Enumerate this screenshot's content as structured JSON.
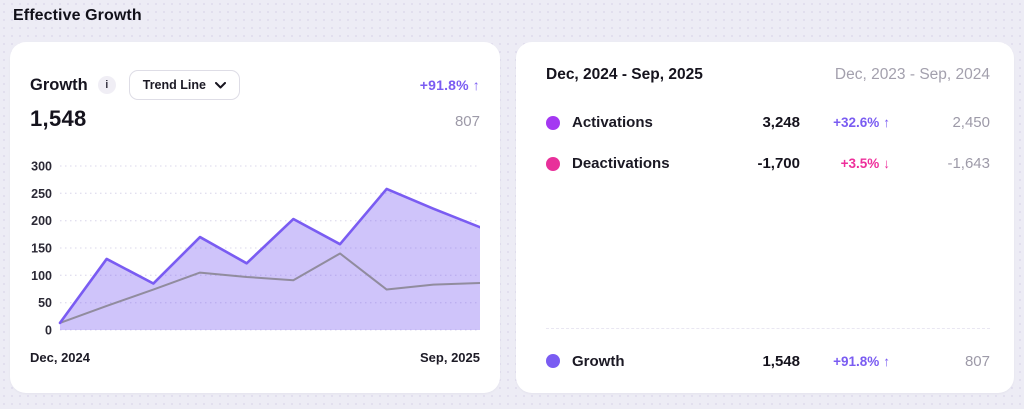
{
  "page": {
    "title": "Effective Growth"
  },
  "growth_card": {
    "title": "Growth",
    "info_icon": "i",
    "dropdown_value": "Trend Line",
    "change": "+91.8%",
    "change_arrow": "↑",
    "current_total": "1,548",
    "previous_total": "807",
    "x_start_label": "Dec, 2024",
    "x_end_label": "Sep, 2025"
  },
  "chart_data": {
    "type": "area",
    "title": "Growth",
    "x_range": [
      "Dec, 2024",
      "Sep, 2025"
    ],
    "ylim": [
      0,
      300
    ],
    "yticks": [
      300,
      250,
      200,
      150,
      100,
      50,
      0
    ],
    "grid": "dotted horizontal",
    "series": [
      {
        "name": "Growth (current period)",
        "color": "#7a5cf2",
        "fill": "rgba(122,92,242,0.36)",
        "values": [
          13,
          130,
          85,
          170,
          122,
          203,
          157,
          258,
          222,
          188
        ],
        "total": 1548
      },
      {
        "name": "Trend Line (previous period)",
        "color": "#8d8999",
        "fill": "none",
        "values": [
          13,
          44,
          74,
          105,
          97,
          91,
          140,
          74,
          83,
          86
        ],
        "total": 807
      }
    ]
  },
  "summary_card": {
    "current_period": "Dec, 2024 - Sep, 2025",
    "previous_period": "Dec, 2023 - Sep, 2024",
    "rows": [
      {
        "label": "Activations",
        "dot_color": "#a438f2",
        "value": "3,248",
        "change": "+32.6%",
        "arrow": "↑",
        "change_color": "#7a5cf2",
        "previous": "2,450"
      },
      {
        "label": "Deactivations",
        "dot_color": "#e8309a",
        "value": "-1,700",
        "change": "+3.5%",
        "arrow": "↓",
        "change_color": "#ee2f9b",
        "previous": "-1,643"
      }
    ],
    "total_row": {
      "label": "Growth",
      "dot_color": "#7a5cf2",
      "value": "1,548",
      "change": "+91.8%",
      "arrow": "↑",
      "change_color": "#7a5cf2",
      "previous": "807"
    }
  },
  "colors": {
    "page_background": "#edecf5",
    "card_background": "#ffffff",
    "accent_purple": "#7a5cf2",
    "accent_pink": "#ee2f9b",
    "activations_dot": "#a438f2",
    "deactivations_dot": "#e8309a",
    "muted_gray": "#9d9aa8",
    "gridline": "#e2dfef"
  }
}
